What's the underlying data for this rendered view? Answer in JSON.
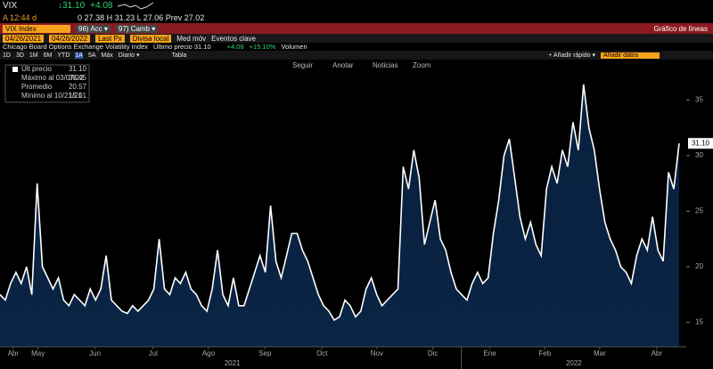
{
  "header": {
    "ticker": "VIX",
    "price": "↓31.10",
    "change": "+4.08",
    "row2_left": "A 12:44 d",
    "row2_right": "0 27.38 H 31.23 L 27.06 Prev 27.02",
    "security": "VIX Index",
    "menu1": "96) Acc ▾",
    "menu2": "97) Camb ▾",
    "chart_kind": "Gráfico de líneas",
    "date_from": "04/26/2021",
    "date_to": "04/26/2022",
    "field": "Last Px",
    "currency": "Divisa local",
    "mov_avg": "Med móv",
    "events": "Eventos clave",
    "description": "Chicago Board Options Exchange Volatility Index",
    "last_text": "Último precio 31.10",
    "last_change": "+4.08",
    "last_pct": "+15.10%",
    "volume": "Volumen",
    "periods": [
      "1D",
      "3D",
      "1M",
      "6M",
      "YTD",
      "1A",
      "5A",
      "Máx",
      "Diario ▾"
    ],
    "table": "Tabla",
    "quick_add": "+ Añadir rápido ▾",
    "add_data": "Añadir datos",
    "tools": [
      "Seguir",
      "Anotar",
      "Noticias",
      "Zoom"
    ]
  },
  "legend_box": [
    {
      "name": "Últ precio",
      "value": "31.10"
    },
    {
      "name": "Máximo al 03/07/22",
      "value": "36.45"
    },
    {
      "name": "Promedio",
      "value": "20.57"
    },
    {
      "name": "Mínimo al 10/21/21",
      "value": "15.01"
    }
  ],
  "chart_data": {
    "type": "area",
    "color": "#ffffff",
    "fill": "#0a2445",
    "values": [
      17.5,
      17,
      18.5,
      19.5,
      18.5,
      20,
      17.5,
      27.5,
      20,
      19,
      18,
      19,
      17,
      16.5,
      17.5,
      17,
      16.5,
      18,
      17,
      18,
      21,
      17,
      16.5,
      16,
      15.8,
      16.5,
      16,
      16.5,
      17,
      18,
      22.5,
      18,
      17.5,
      19,
      18.5,
      19.5,
      18,
      17.5,
      16.5,
      16,
      18,
      21.5,
      17.5,
      16.5,
      19,
      16.5,
      16.5,
      18,
      19.5,
      21,
      19.5,
      25.5,
      20.5,
      19,
      21,
      23,
      23,
      21.5,
      20.5,
      19,
      17.5,
      16.5,
      16,
      15.2,
      15.5,
      17,
      16.5,
      15.5,
      16,
      18,
      19,
      17.5,
      16.5,
      17,
      17.5,
      18,
      29,
      27,
      30.5,
      28,
      22,
      24,
      26,
      22.5,
      21.5,
      19.5,
      18,
      17.5,
      17,
      18.5,
      19.5,
      18.5,
      19,
      23,
      26,
      30,
      31.5,
      28,
      24.5,
      22.5,
      24,
      22,
      21,
      27,
      29,
      27.5,
      30.5,
      29,
      33,
      30.5,
      36.4,
      32.5,
      30.5,
      27,
      24,
      22.5,
      21.5,
      20,
      19.5,
      18.5,
      21,
      22.5,
      21.5,
      24.5,
      21.5,
      20.5,
      28.5,
      27,
      31.1
    ],
    "last_price_label": "31.10",
    "ylim": [
      12.8,
      38.4
    ],
    "yticks": [
      15,
      20,
      25,
      30,
      35
    ],
    "xlim": [
      0,
      130
    ],
    "xticks": [
      {
        "value": 2.5,
        "label": "Abr"
      },
      {
        "value": 7.2,
        "label": "May"
      },
      {
        "value": 18,
        "label": "Jun"
      },
      {
        "value": 29,
        "label": "Jul"
      },
      {
        "value": 39.5,
        "label": "Ago"
      },
      {
        "value": 50.2,
        "label": "Sep"
      },
      {
        "value": 61,
        "label": "Oct"
      },
      {
        "value": 71.4,
        "label": "Nov"
      },
      {
        "value": 82,
        "label": "Dic"
      },
      {
        "value": 92.8,
        "label": "Ene"
      },
      {
        "value": 103.2,
        "label": "Feb"
      },
      {
        "value": 113.6,
        "label": "Mar"
      },
      {
        "value": 124.4,
        "label": "Abr"
      }
    ],
    "year_ticks": [
      {
        "value": 44,
        "label": "2021"
      },
      {
        "value": 108.7,
        "label": "2022"
      }
    ],
    "year_divider": 87.4
  }
}
